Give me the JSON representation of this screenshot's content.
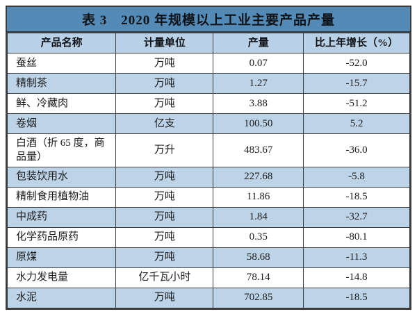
{
  "colors": {
    "title_bar_blue": "#548ab6",
    "header_blue": "#b9d1e7",
    "row_stripe_blue": "#bcd3e8",
    "row_white": "#ffffff",
    "border_dark": "#3c3c3c",
    "text_dark": "#1c1c1c"
  },
  "table": {
    "title": "表 3　2020 年规模以上工业主要产品产量",
    "columns": [
      "产品名称",
      "计量单位",
      "产量",
      "比上年增长（%）"
    ],
    "rows": [
      {
        "name": "蚕丝",
        "unit": "万吨",
        "output": "0.07",
        "growth": "-52.0"
      },
      {
        "name": "精制茶",
        "unit": "万吨",
        "output": "1.27",
        "growth": "-15.7"
      },
      {
        "name": "鲜、冷藏肉",
        "unit": "万吨",
        "output": "3.88",
        "growth": "-51.2"
      },
      {
        "name": "卷烟",
        "unit": "亿支",
        "output": "100.50",
        "growth": "5.2"
      },
      {
        "name": "白酒（折 65 度，商品量）",
        "unit": "万升",
        "output": "483.67",
        "growth": "-36.0"
      },
      {
        "name": "包装饮用水",
        "unit": "万吨",
        "output": "227.68",
        "growth": "-5.8"
      },
      {
        "name": "精制食用植物油",
        "unit": "万吨",
        "output": "11.86",
        "growth": "-18.5"
      },
      {
        "name": "中成药",
        "unit": "万吨",
        "output": "1.84",
        "growth": "-32.7"
      },
      {
        "name": "化学药品原药",
        "unit": "万吨",
        "output": "0.35",
        "growth": "-80.1"
      },
      {
        "name": "原煤",
        "unit": "万吨",
        "output": "58.68",
        "growth": "-11.3"
      },
      {
        "name": "水力发电量",
        "unit": "亿千瓦小时",
        "output": "78.14",
        "growth": "-14.8"
      },
      {
        "name": "水泥",
        "unit": "万吨",
        "output": "702.85",
        "growth": "-18.5"
      }
    ]
  },
  "chart_data": {
    "type": "table",
    "title": "表 3　2020 年规模以上工业主要产品产量",
    "columns": [
      "产品名称",
      "计量单位",
      "产量",
      "比上年增长（%）"
    ],
    "rows": [
      [
        "蚕丝",
        "万吨",
        0.07,
        -52.0
      ],
      [
        "精制茶",
        "万吨",
        1.27,
        -15.7
      ],
      [
        "鲜、冷藏肉",
        "万吨",
        3.88,
        -51.2
      ],
      [
        "卷烟",
        "亿支",
        100.5,
        5.2
      ],
      [
        "白酒（折 65 度，商品量）",
        "万升",
        483.67,
        -36.0
      ],
      [
        "包装饮用水",
        "万吨",
        227.68,
        -5.8
      ],
      [
        "精制食用植物油",
        "万吨",
        11.86,
        -18.5
      ],
      [
        "中成药",
        "万吨",
        1.84,
        -32.7
      ],
      [
        "化学药品原药",
        "万吨",
        0.35,
        -80.1
      ],
      [
        "原煤",
        "万吨",
        58.68,
        -11.3
      ],
      [
        "水力发电量",
        "亿千瓦小时",
        78.14,
        -14.8
      ],
      [
        "水泥",
        "万吨",
        702.85,
        -18.5
      ]
    ]
  }
}
